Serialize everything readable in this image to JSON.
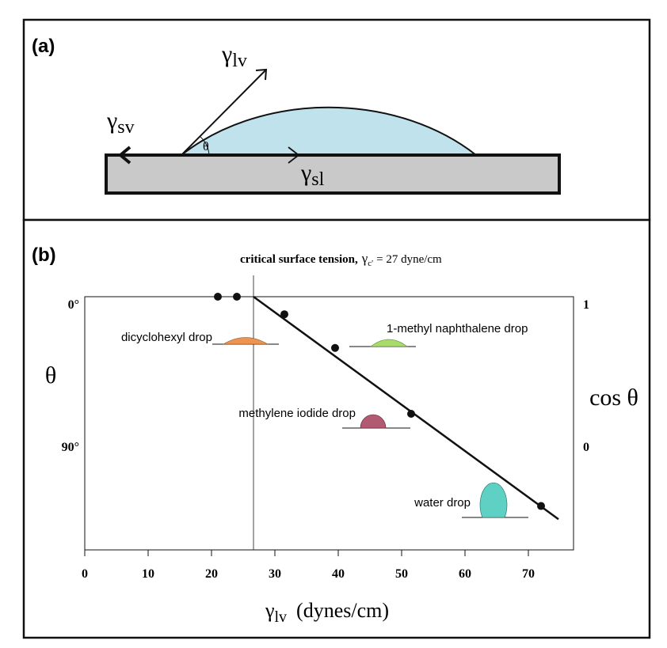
{
  "panel_a": {
    "label": "(a)",
    "gamma_lv": {
      "sym": "γ",
      "sub": "lv"
    },
    "gamma_sv": {
      "sym": "γ",
      "sub": "sv"
    },
    "gamma_sl": {
      "sym": "γ",
      "sub": "sl"
    },
    "angle": "θ",
    "colors": {
      "drop": "#bfe2ec",
      "substrate": "#c9c9c9"
    }
  },
  "panel_b": {
    "label": "(b)",
    "critical": {
      "bold": "critical surface tension,",
      "sym": "γ",
      "sub": "c'",
      "rest": "= 27 dyne/cm"
    },
    "left_axis": {
      "title": "θ",
      "ticks": [
        "0°",
        "90°"
      ]
    },
    "right_axis": {
      "title": "cos θ",
      "ticks": [
        "1",
        "0"
      ]
    },
    "x_axis": {
      "title_sym": "γ",
      "title_sub": "lv",
      "title_rest": "(dynes/cm)",
      "ticks": [
        "0",
        "10",
        "20",
        "30",
        "40",
        "50",
        "60",
        "70"
      ]
    },
    "drops": {
      "dicyclohexyl": {
        "label": "dicyclohexyl drop",
        "color": "#ee9450"
      },
      "naphthalene": {
        "label": "1-methyl naphthalene drop",
        "color": "#a8dc6a"
      },
      "methylene": {
        "label": "methylene iodide drop",
        "color": "#b25a72"
      },
      "water": {
        "label": "water drop",
        "color": "#5fd0c4"
      }
    }
  },
  "chart_data": {
    "type": "scatter",
    "xlabel": "γlv (dynes/cm)",
    "ylabel": "θ",
    "y2label": "cos θ",
    "xlim": [
      0,
      75
    ],
    "ylim_cos": [
      -0.8,
      1
    ],
    "x_ticks": [
      0,
      10,
      20,
      30,
      40,
      50,
      60,
      70
    ],
    "y_ticks_cos": [
      1,
      0
    ],
    "y_tick_labels_theta": [
      "0°",
      "90°"
    ],
    "critical_surface_tension": 27,
    "grid": false,
    "series": [
      {
        "values": [
          {
            "x": 21,
            "y": 1.0
          },
          {
            "x": 24,
            "y": 1.0
          },
          {
            "x": 31.5,
            "y": 0.88
          },
          {
            "x": 39.5,
            "y": 0.65
          },
          {
            "x": 51.5,
            "y": 0.2
          },
          {
            "x": 72,
            "y": -0.43
          }
        ]
      }
    ],
    "fit_line": [
      {
        "x": 26,
        "y": 1.0
      },
      {
        "x": 75,
        "y": -0.52
      }
    ]
  }
}
